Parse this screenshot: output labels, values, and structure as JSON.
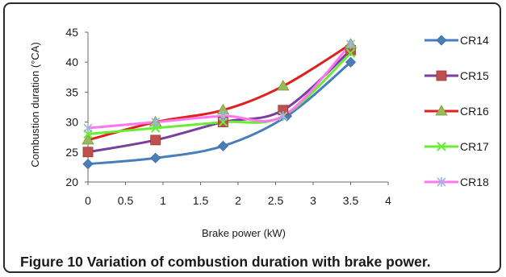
{
  "chart_data": {
    "type": "line",
    "xlabel": "Brake power (kW)",
    "ylabel": "Combustion duration (°CA)",
    "xlim": [
      0,
      4
    ],
    "ylim": [
      20,
      45
    ],
    "xticks": [
      "0",
      "0.5",
      "1",
      "1.5",
      "2",
      "2.5",
      "3",
      "3.5",
      "4"
    ],
    "yticks": [
      "20",
      "25",
      "30",
      "35",
      "40",
      "45"
    ],
    "grid": false,
    "legend_position": "right",
    "series": [
      {
        "name": "CR14",
        "color": "#4a7ebb",
        "marker": "diamond",
        "x": [
          0,
          0.9,
          1.8,
          2.65,
          3.5
        ],
        "y": [
          23,
          24,
          26,
          31,
          40
        ]
      },
      {
        "name": "CR15",
        "color": "#7a3e9d",
        "marker": "square",
        "x": [
          0,
          0.9,
          1.8,
          2.6,
          3.5
        ],
        "y": [
          25,
          27,
          30,
          32,
          42
        ]
      },
      {
        "name": "CR16",
        "color": "#e01f1f",
        "marker": "triangle",
        "x": [
          0,
          0.9,
          1.8,
          2.6,
          3.5
        ],
        "y": [
          27,
          30,
          32,
          36,
          43
        ]
      },
      {
        "name": "CR17",
        "color": "#66ee33",
        "marker": "x",
        "x": [
          0,
          0.9,
          1.8,
          2.6,
          3.5
        ],
        "y": [
          28,
          29,
          30,
          31,
          41.5
        ]
      },
      {
        "name": "CR18",
        "color": "#ff77ee",
        "marker": "star",
        "x": [
          0,
          0.9,
          1.8,
          2.6,
          3.5
        ],
        "y": [
          29,
          30,
          31,
          31,
          43
        ]
      }
    ]
  },
  "caption": {
    "label": "Figure 10",
    "text": "Variation of combustion duration with brake power."
  }
}
